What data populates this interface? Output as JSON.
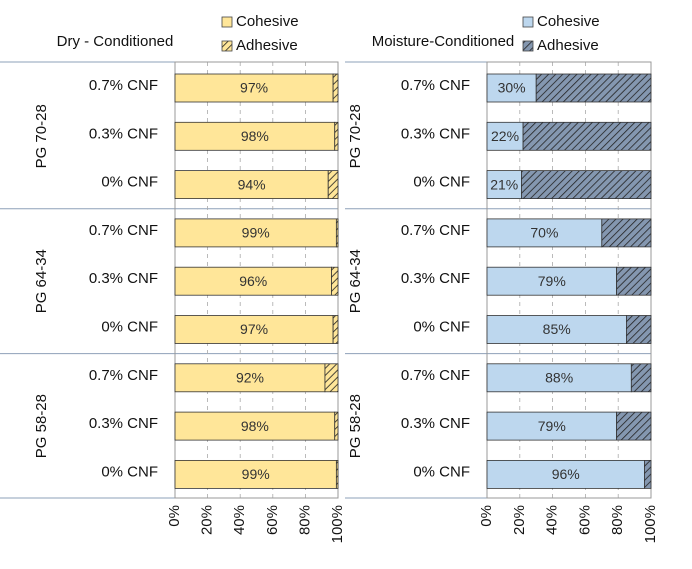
{
  "chart_data": [
    {
      "type": "bar",
      "orientation": "horizontal",
      "stacked": true,
      "title": "Dry - Conditioned",
      "groups": [
        "PG 70-28",
        "PG 64-34",
        "PG 58-28"
      ],
      "categories": [
        "0.7% CNF",
        "0.3% CNF",
        "0% CNF",
        "0.7% CNF",
        "0.3% CNF",
        "0% CNF",
        "0.7% CNF",
        "0.3% CNF",
        "0% CNF"
      ],
      "series": [
        {
          "name": "Cohesive",
          "color": "#ffe699",
          "values": [
            97,
            98,
            94,
            99,
            96,
            97,
            92,
            98,
            99
          ],
          "value_labels": [
            "97%",
            "98%",
            "94%",
            "99%",
            "96%",
            "97%",
            "92%",
            "98%",
            "99%"
          ]
        },
        {
          "name": "Adhesive",
          "color": "#ffe699",
          "pattern": "hatch",
          "values": [
            3,
            2,
            6,
            1,
            4,
            3,
            8,
            2,
            1
          ]
        }
      ],
      "xlim": [
        0,
        100
      ],
      "xticks": [
        {
          "value": 0,
          "label": "0%"
        },
        {
          "value": 20,
          "label": "20%"
        },
        {
          "value": 40,
          "label": "40%"
        },
        {
          "value": 60,
          "label": "60%"
        },
        {
          "value": 80,
          "label": "80%"
        },
        {
          "value": 100,
          "label": "100%"
        }
      ],
      "grid": true
    },
    {
      "type": "bar",
      "orientation": "horizontal",
      "stacked": true,
      "title": "Moisture-Conditioned",
      "groups": [
        "PG 70-28",
        "PG 64-34",
        "PG 58-28"
      ],
      "categories": [
        "0.7% CNF",
        "0.3% CNF",
        "0% CNF",
        "0.7% CNF",
        "0.3% CNF",
        "0% CNF",
        "0.7% CNF",
        "0.3% CNF",
        "0% CNF"
      ],
      "series": [
        {
          "name": "Cohesive",
          "color": "#bdd7ee",
          "values": [
            30,
            22,
            21,
            70,
            79,
            85,
            88,
            79,
            96
          ],
          "value_labels": [
            "30%",
            "22%",
            "21%",
            "70%",
            "79%",
            "85%",
            "88%",
            "79%",
            "96%"
          ]
        },
        {
          "name": "Adhesive",
          "color": "#8497b0",
          "pattern": "hatch",
          "values": [
            70,
            78,
            79,
            30,
            21,
            15,
            12,
            21,
            4
          ]
        }
      ],
      "xlim": [
        0,
        100
      ],
      "xticks": [
        {
          "value": 0,
          "label": "0%"
        },
        {
          "value": 20,
          "label": "20%"
        },
        {
          "value": 40,
          "label": "40%"
        },
        {
          "value": 60,
          "label": "60%"
        },
        {
          "value": 80,
          "label": "80%"
        },
        {
          "value": 100,
          "label": "100%"
        }
      ],
      "grid": true
    }
  ]
}
